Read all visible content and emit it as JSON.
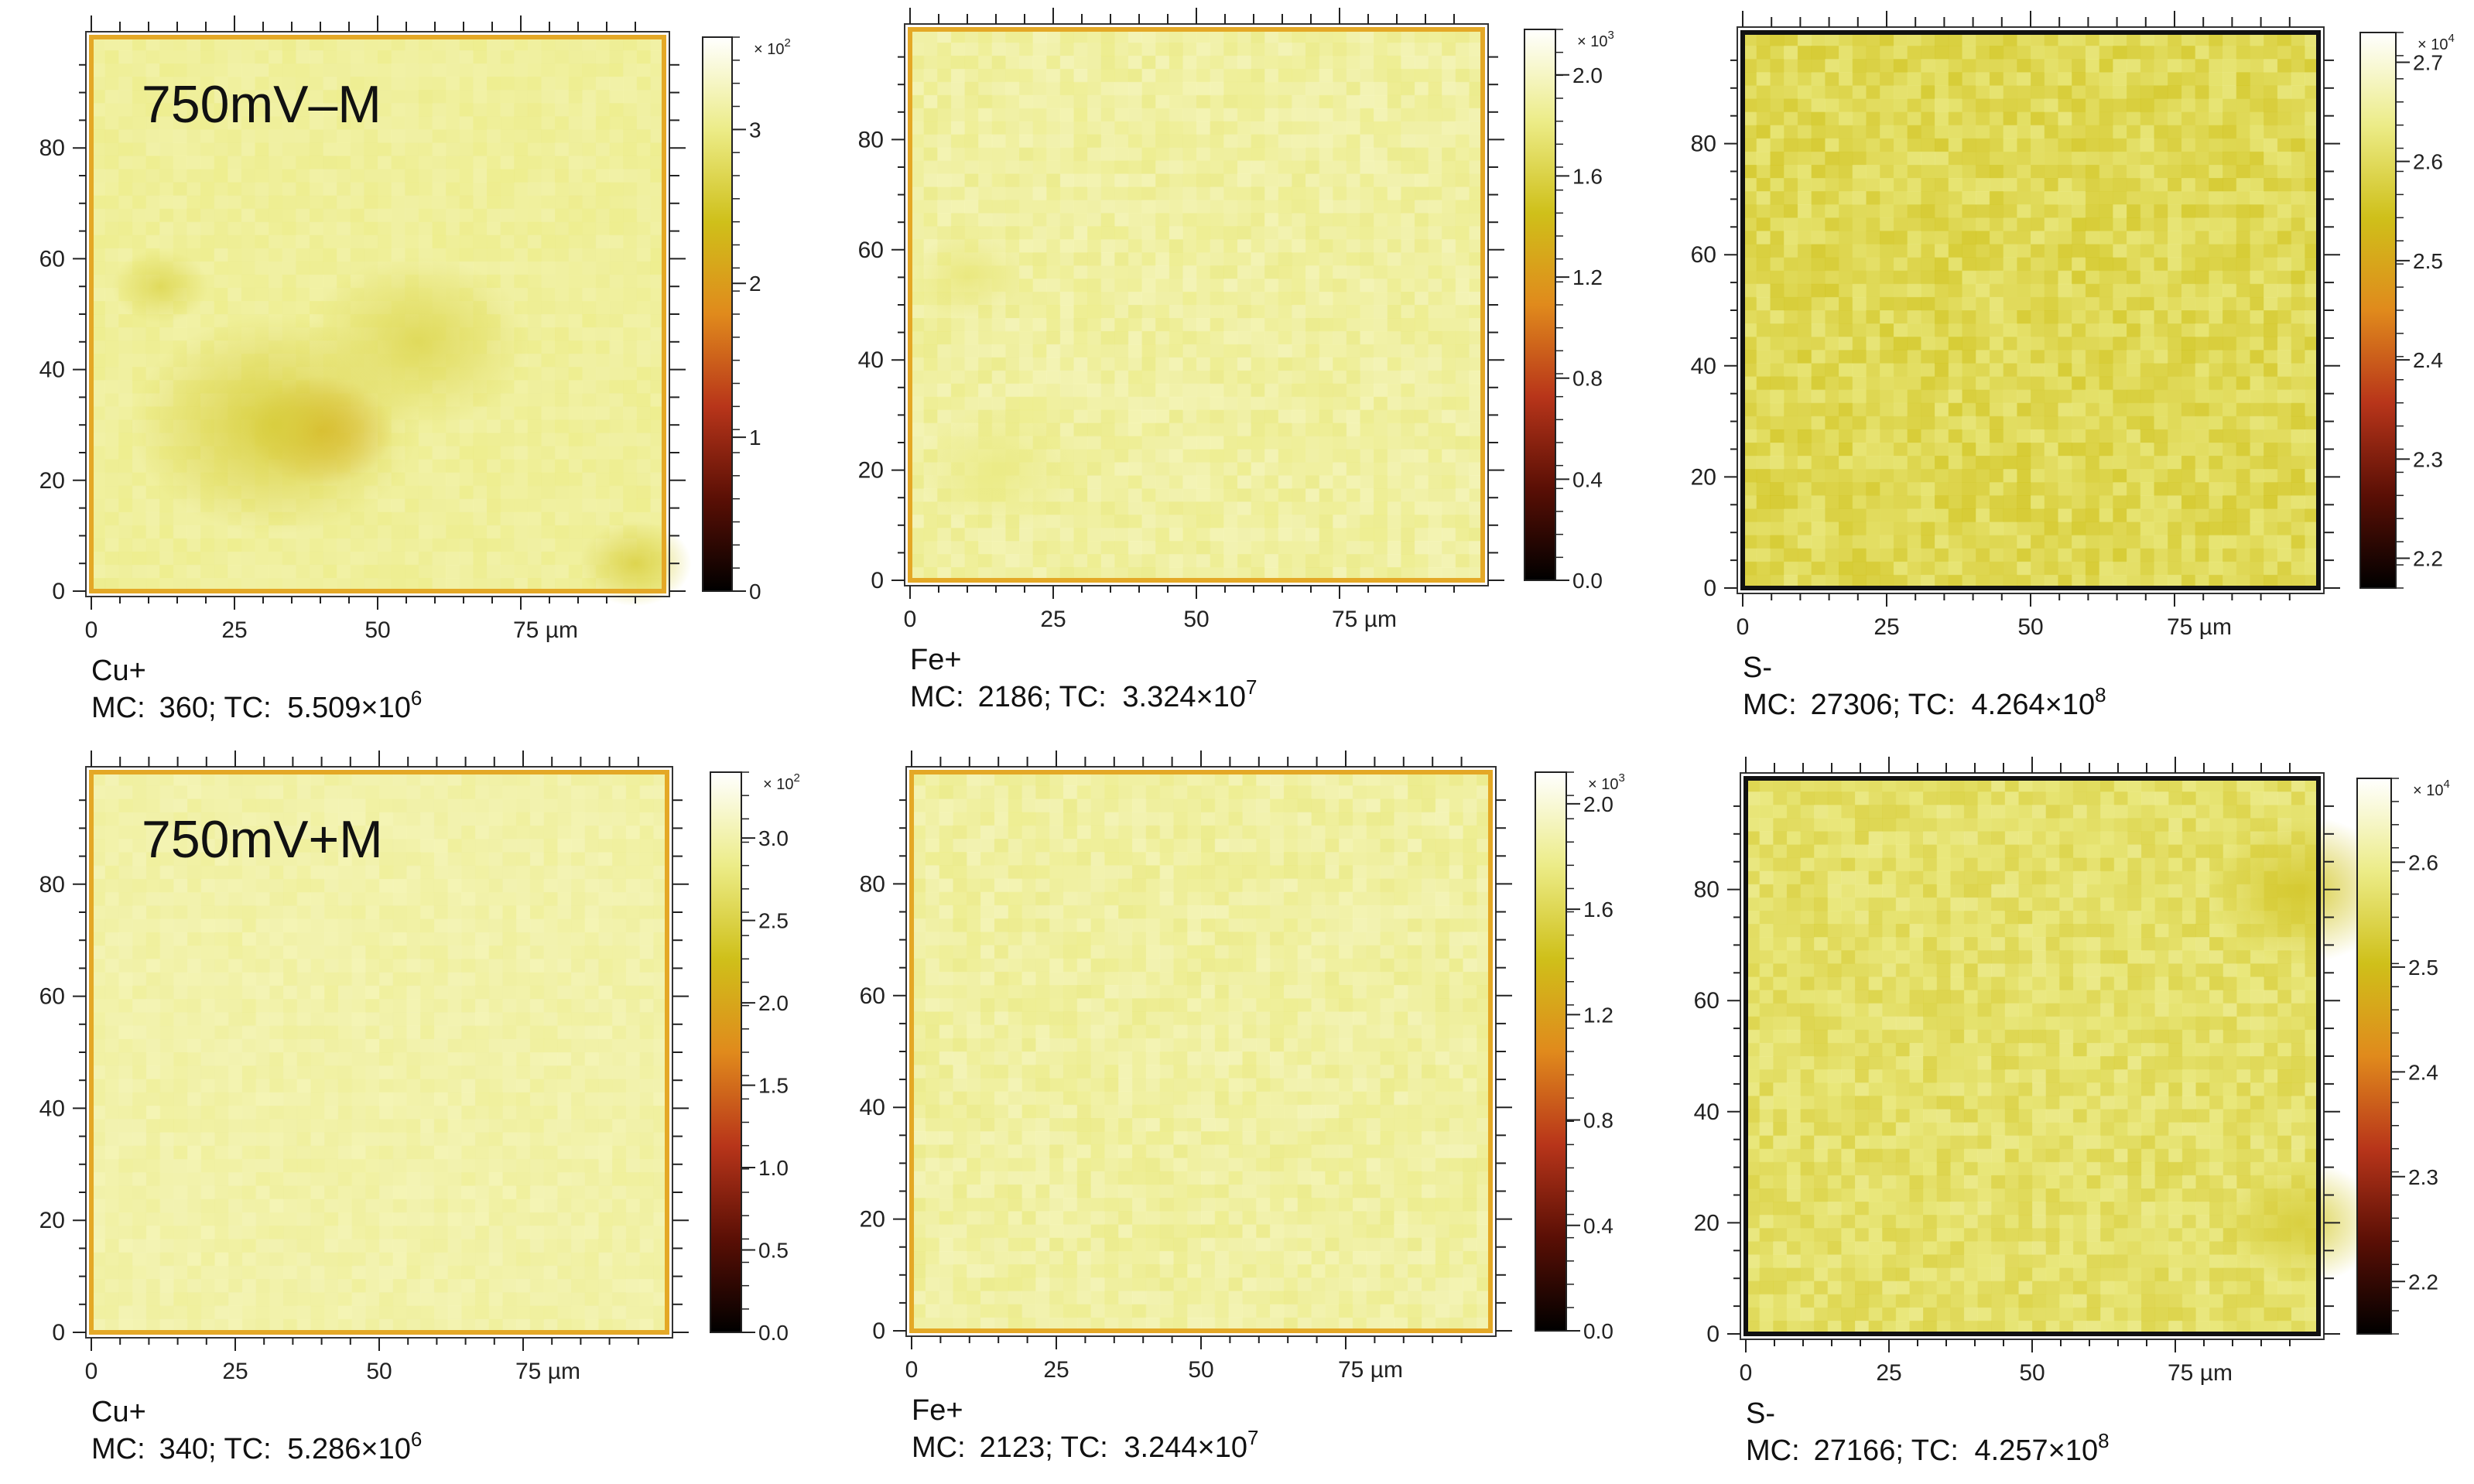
{
  "chart_data": [
    {
      "type": "heatmap",
      "panel_label": "750mV–M",
      "species": "Cu+",
      "stats": {
        "mc_label": "MC:",
        "mc": "360",
        "tc_label": "TC:",
        "tc_mantissa": "5.509",
        "tc_times": "×10",
        "tc_exponent": "6"
      },
      "axes": {
        "x_ticks": [
          "0",
          "25",
          "50",
          "75 µm"
        ],
        "y_ticks": [
          "0",
          "20",
          "40",
          "60",
          "80"
        ],
        "xlim": [
          0,
          100
        ],
        "ylim": [
          0,
          100
        ]
      },
      "colorbar": {
        "multiplier_prefix": "× 10",
        "multiplier_exponent": "2",
        "ticks": [
          "0",
          "1",
          "2",
          "3"
        ],
        "tick_values": [
          0,
          1,
          2,
          3
        ],
        "range": [
          0,
          3.6
        ]
      },
      "colormap": [
        "#000000",
        "#5a0f05",
        "#b8351a",
        "#e08a1c",
        "#cfc01a",
        "#ecec88",
        "#ffffff"
      ],
      "intensity_base": 0.86,
      "features": [
        {
          "x": 40,
          "y": 29,
          "r": 9,
          "level": 0.58
        },
        {
          "x": 32,
          "y": 30,
          "r": 18,
          "level": 0.72
        },
        {
          "x": 57,
          "y": 45,
          "r": 14,
          "level": 0.76
        },
        {
          "x": 12,
          "y": 55,
          "r": 6,
          "level": 0.76
        },
        {
          "x": 95,
          "y": 5,
          "r": 7,
          "level": 0.74
        }
      ],
      "frame": "#e4a826",
      "noise": 0.03
    },
    {
      "type": "heatmap",
      "panel_label": "",
      "species": "Fe+",
      "stats": {
        "mc_label": "MC:",
        "mc": "2186",
        "tc_label": "TC:",
        "tc_mantissa": "3.324",
        "tc_times": "×10",
        "tc_exponent": "7"
      },
      "axes": {
        "x_ticks": [
          "0",
          "25",
          "50",
          "75 µm"
        ],
        "y_ticks": [
          "0",
          "20",
          "40",
          "60",
          "80"
        ],
        "xlim": [
          0,
          100
        ],
        "ylim": [
          0,
          100
        ]
      },
      "colorbar": {
        "multiplier_prefix": "× 10",
        "multiplier_exponent": "3",
        "ticks": [
          "0.0",
          "0.4",
          "0.8",
          "1.2",
          "1.6",
          "2.0"
        ],
        "tick_values": [
          0,
          0.4,
          0.8,
          1.2,
          1.6,
          2.0
        ],
        "range": [
          0,
          2.18
        ]
      },
      "colormap": [
        "#000000",
        "#5a0f05",
        "#b8351a",
        "#e08a1c",
        "#cfc01a",
        "#ecec88",
        "#ffffff"
      ],
      "intensity_base": 0.87,
      "features": [
        {
          "x": 10,
          "y": 55,
          "r": 7,
          "level": 0.82
        },
        {
          "x": 15,
          "y": 20,
          "r": 10,
          "level": 0.83
        }
      ],
      "frame": "#e4a826",
      "noise": 0.05
    },
    {
      "type": "heatmap",
      "panel_label": "",
      "species": "S-",
      "stats": {
        "mc_label": "MC:",
        "mc": "27306",
        "tc_label": "TC:",
        "tc_mantissa": "4.264",
        "tc_times": "×10",
        "tc_exponent": "8"
      },
      "axes": {
        "x_ticks": [
          "0",
          "25",
          "50",
          "75 µm"
        ],
        "y_ticks": [
          "0",
          "20",
          "40",
          "60",
          "80"
        ],
        "xlim": [
          0,
          100
        ],
        "ylim": [
          0,
          100
        ]
      },
      "colorbar": {
        "multiplier_prefix": "× 10",
        "multiplier_exponent": "4",
        "ticks": [
          "2.2",
          "2.3",
          "2.4",
          "2.5",
          "2.6",
          "2.7"
        ],
        "tick_values": [
          2.2,
          2.3,
          2.4,
          2.5,
          2.6,
          2.7
        ],
        "range": [
          2.17,
          2.73
        ]
      },
      "colormap": [
        "#000000",
        "#5a0f05",
        "#b8351a",
        "#e08a1c",
        "#cfc01a",
        "#ecec88",
        "#ffffff"
      ],
      "intensity_base": 0.76,
      "features": [],
      "frame": "#111111",
      "noise": 0.09
    },
    {
      "type": "heatmap",
      "panel_label": "750mV+M",
      "species": "Cu+",
      "stats": {
        "mc_label": "MC:",
        "mc": "340",
        "tc_label": "TC:",
        "tc_mantissa": "5.286",
        "tc_times": "×10",
        "tc_exponent": "6"
      },
      "axes": {
        "x_ticks": [
          "0",
          "25",
          "50",
          "75 µm"
        ],
        "y_ticks": [
          "0",
          "20",
          "40",
          "60",
          "80"
        ],
        "xlim": [
          0,
          100
        ],
        "ylim": [
          0,
          100
        ]
      },
      "colorbar": {
        "multiplier_prefix": "× 10",
        "multiplier_exponent": "2",
        "ticks": [
          "0.0",
          "0.5",
          "1.0",
          "1.5",
          "2.0",
          "2.5",
          "3.0"
        ],
        "tick_values": [
          0,
          0.5,
          1.0,
          1.5,
          2.0,
          2.5,
          3.0
        ],
        "range": [
          0,
          3.4
        ]
      },
      "colormap": [
        "#000000",
        "#5a0f05",
        "#b8351a",
        "#e08a1c",
        "#cfc01a",
        "#ecec88",
        "#ffffff"
      ],
      "intensity_base": 0.88,
      "features": [],
      "frame": "#e4a826",
      "noise": 0.03
    },
    {
      "type": "heatmap",
      "panel_label": "",
      "species": "Fe+",
      "stats": {
        "mc_label": "MC:",
        "mc": "2123",
        "tc_label": "TC:",
        "tc_mantissa": "3.244",
        "tc_times": "×10",
        "tc_exponent": "7"
      },
      "axes": {
        "x_ticks": [
          "0",
          "25",
          "50",
          "75 µm"
        ],
        "y_ticks": [
          "0",
          "20",
          "40",
          "60",
          "80"
        ],
        "xlim": [
          0,
          100
        ],
        "ylim": [
          0,
          100
        ]
      },
      "colorbar": {
        "multiplier_prefix": "× 10",
        "multiplier_exponent": "3",
        "ticks": [
          "0.0",
          "0.4",
          "0.8",
          "1.2",
          "1.6",
          "2.0"
        ],
        "tick_values": [
          0,
          0.4,
          0.8,
          1.2,
          1.6,
          2.0
        ],
        "range": [
          0,
          2.12
        ]
      },
      "colormap": [
        "#000000",
        "#5a0f05",
        "#b8351a",
        "#e08a1c",
        "#cfc01a",
        "#ecec88",
        "#ffffff"
      ],
      "intensity_base": 0.87,
      "features": [],
      "frame": "#e4a826",
      "noise": 0.05
    },
    {
      "type": "heatmap",
      "panel_label": "",
      "species": "S-",
      "stats": {
        "mc_label": "MC:",
        "mc": "27166",
        "tc_label": "TC:",
        "tc_mantissa": "4.257",
        "tc_times": "×10",
        "tc_exponent": "8"
      },
      "axes": {
        "x_ticks": [
          "0",
          "25",
          "50",
          "75 µm"
        ],
        "y_ticks": [
          "0",
          "20",
          "40",
          "60",
          "80"
        ],
        "xlim": [
          0,
          100
        ],
        "ylim": [
          0,
          100
        ]
      },
      "colorbar": {
        "multiplier_prefix": "× 10",
        "multiplier_exponent": "4",
        "ticks": [
          "2.2",
          "2.3",
          "2.4",
          "2.5",
          "2.6"
        ],
        "tick_values": [
          2.2,
          2.3,
          2.4,
          2.5,
          2.6
        ],
        "range": [
          2.15,
          2.68
        ]
      },
      "colormap": [
        "#000000",
        "#5a0f05",
        "#b8351a",
        "#e08a1c",
        "#cfc01a",
        "#ecec88",
        "#ffffff"
      ],
      "intensity_base": 0.79,
      "features": [
        {
          "x": 97,
          "y": 80,
          "r": 12,
          "level": 0.7
        },
        {
          "x": 97,
          "y": 20,
          "r": 10,
          "level": 0.72
        }
      ],
      "frame": "#111111",
      "noise": 0.08
    }
  ]
}
